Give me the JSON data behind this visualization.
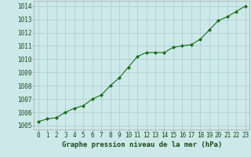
{
  "x": [
    0,
    1,
    2,
    3,
    4,
    5,
    6,
    7,
    8,
    9,
    10,
    11,
    12,
    13,
    14,
    15,
    16,
    17,
    18,
    19,
    20,
    21,
    22,
    23
  ],
  "y": [
    1005.3,
    1005.5,
    1005.6,
    1006.0,
    1006.3,
    1006.5,
    1007.0,
    1007.3,
    1008.0,
    1008.6,
    1009.4,
    1010.2,
    1010.5,
    1010.5,
    1010.5,
    1010.9,
    1011.0,
    1011.1,
    1011.5,
    1012.2,
    1012.9,
    1013.2,
    1013.6,
    1014.0
  ],
  "line_color": "#1a6e1a",
  "marker": "D",
  "marker_size": 2.0,
  "bg_color": "#cce8e8",
  "grid_color": "#aacccc",
  "ylabel_ticks": [
    1005,
    1006,
    1007,
    1008,
    1009,
    1010,
    1011,
    1012,
    1013,
    1014
  ],
  "xlabel": "Graphe pression niveau de la mer (hPa)",
  "ylim": [
    1004.7,
    1014.4
  ],
  "xlim": [
    -0.5,
    23.5
  ],
  "tick_fontsize": 5.5,
  "label_fontsize": 6.5
}
